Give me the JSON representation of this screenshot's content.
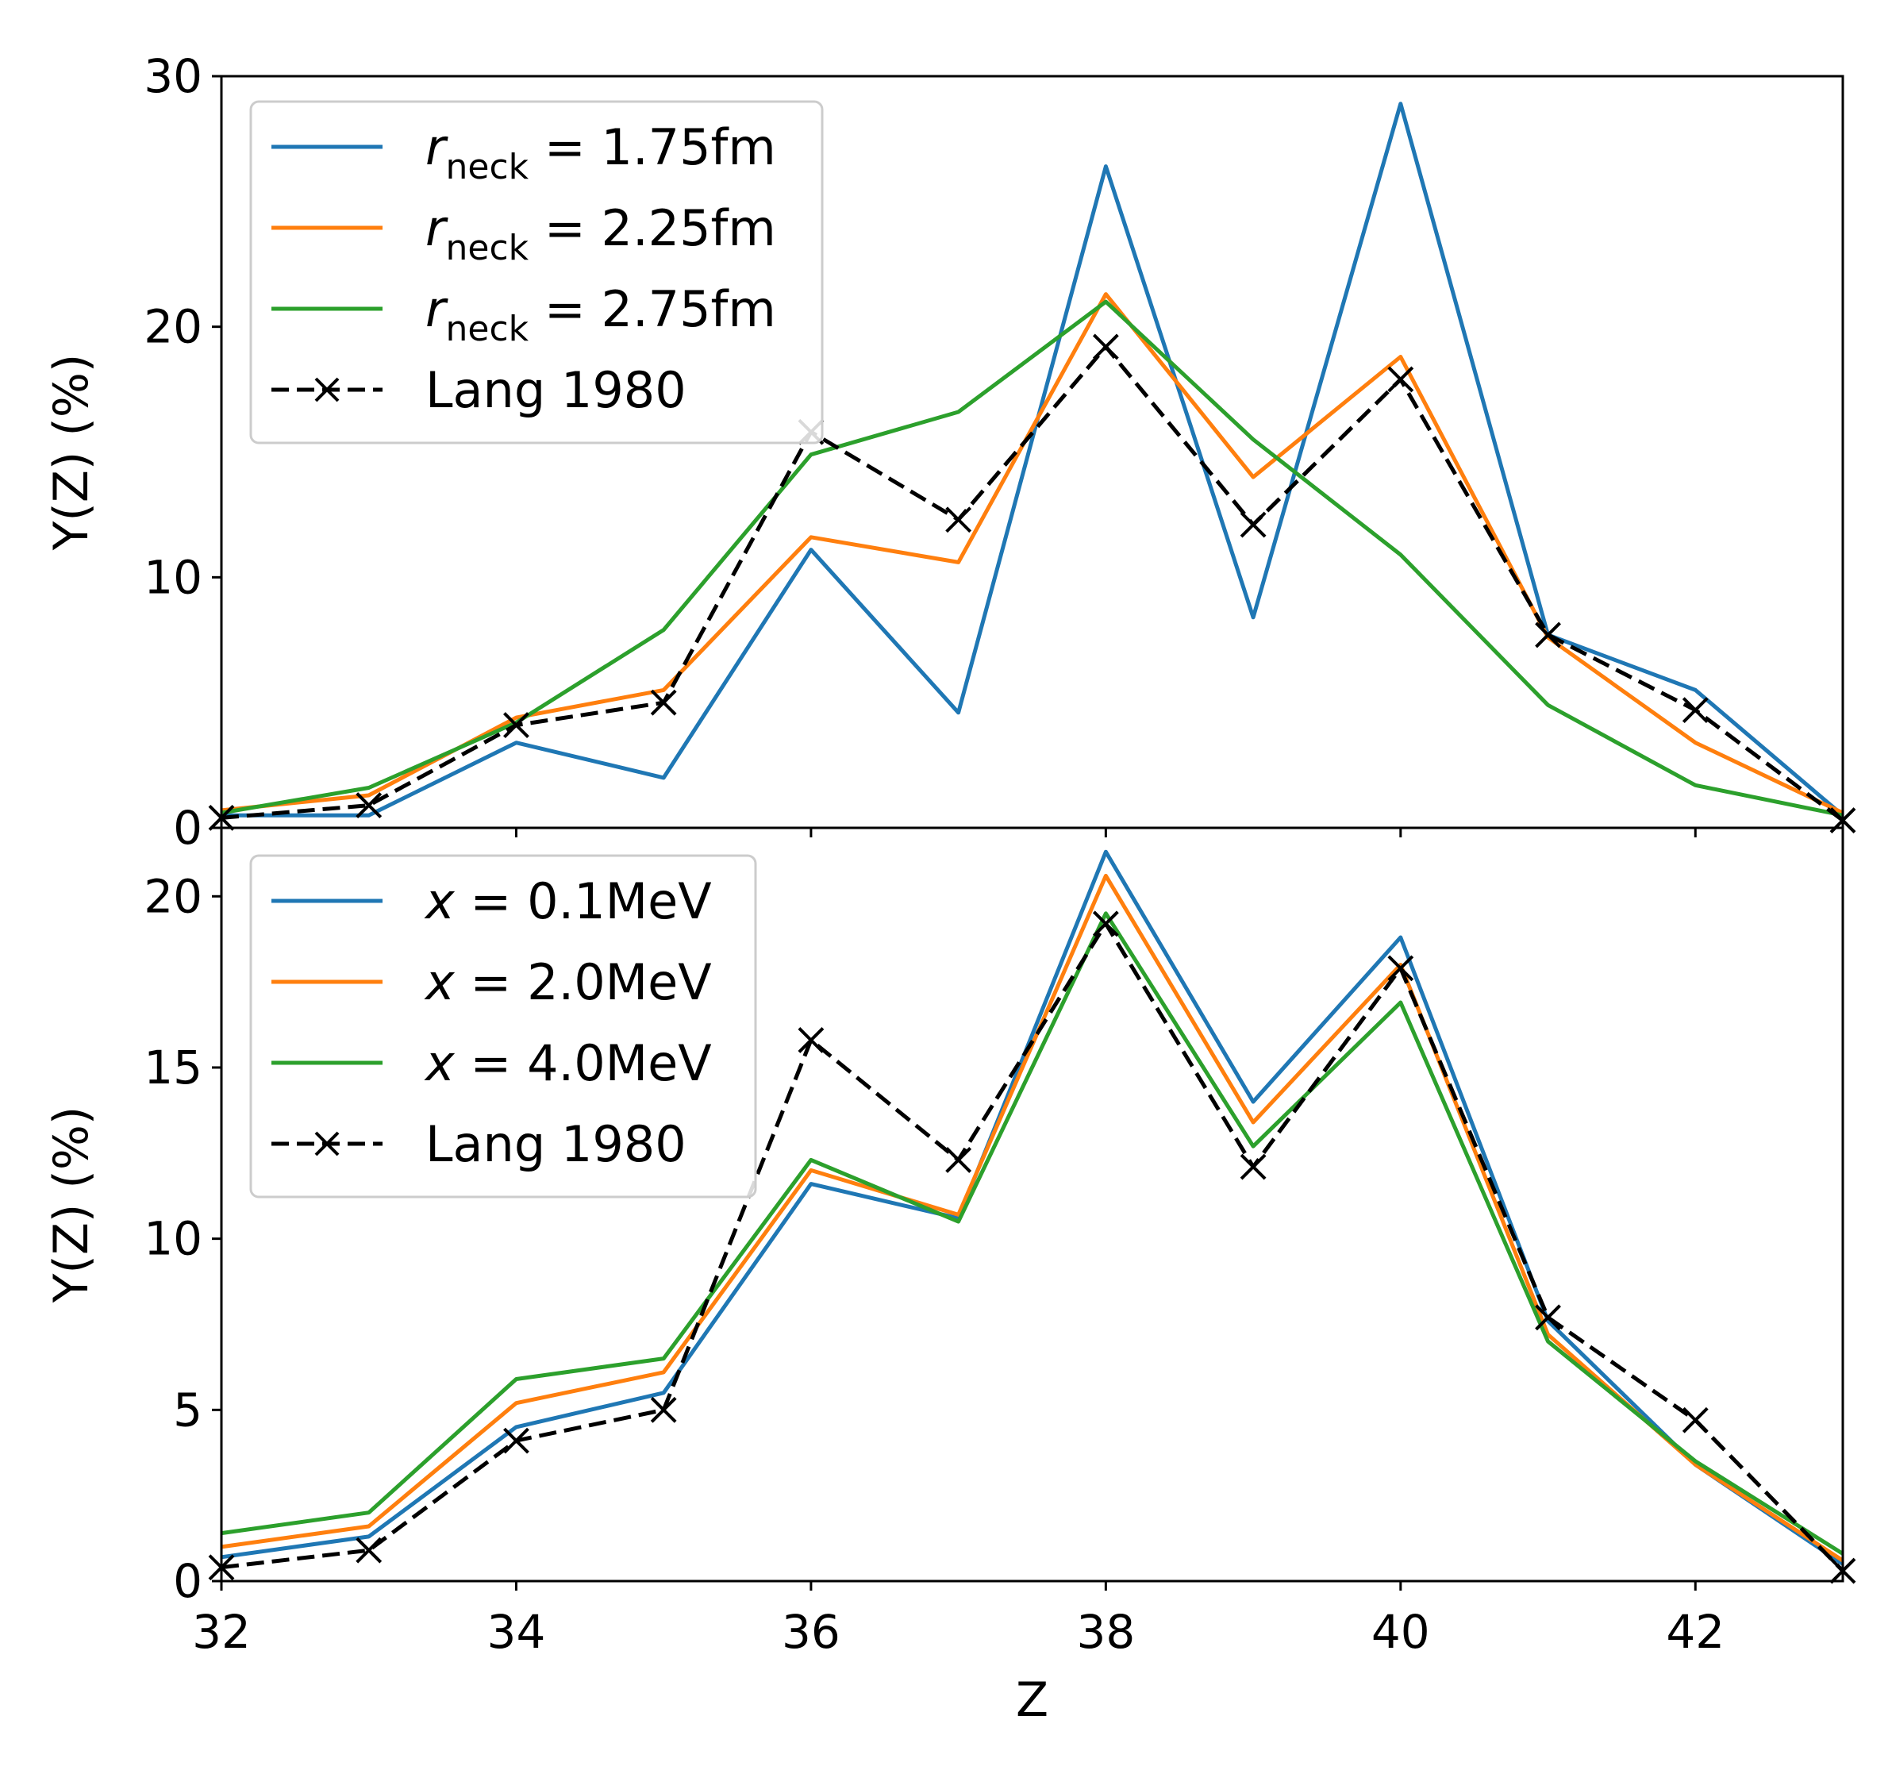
{
  "chart_data": [
    {
      "type": "line",
      "title": "",
      "xlabel": "",
      "ylabel": "Y(Z) (%)",
      "xlim": [
        32,
        43
      ],
      "ylim": [
        0,
        30
      ],
      "grid": false,
      "legend_position": "top-left",
      "x": [
        32,
        33,
        34,
        35,
        36,
        37,
        38,
        39,
        40,
        41,
        42,
        43
      ],
      "x_ticks": [],
      "y_ticks": [
        "0",
        "10",
        "20",
        "30"
      ],
      "series": [
        {
          "name": "r_neck = 1.75fm",
          "label_main": "r",
          "label_sub": "neck",
          "label_rest": " = 1.75fm",
          "color": "#1f77b4",
          "dashed": false,
          "marker": "none",
          "values": [
            0.5,
            0.5,
            3.4,
            2.0,
            11.1,
            4.6,
            26.4,
            8.4,
            28.9,
            7.7,
            5.5,
            0.5
          ]
        },
        {
          "name": "r_neck = 2.25fm",
          "label_main": "r",
          "label_sub": "neck",
          "label_rest": " = 2.25fm",
          "color": "#ff7f0e",
          "dashed": false,
          "marker": "none",
          "values": [
            0.7,
            1.3,
            4.4,
            5.5,
            11.6,
            10.6,
            21.3,
            14.0,
            18.8,
            7.6,
            3.4,
            0.6
          ]
        },
        {
          "name": "r_neck = 2.75fm",
          "label_main": "r",
          "label_sub": "neck",
          "label_rest": " = 2.75fm",
          "color": "#2ca02c",
          "dashed": false,
          "marker": "none",
          "values": [
            0.6,
            1.6,
            4.2,
            7.9,
            14.9,
            16.6,
            21.0,
            15.5,
            10.9,
            4.9,
            1.7,
            0.5
          ]
        },
        {
          "name": "Lang 1980",
          "label_main": "Lang 1980",
          "label_sub": "",
          "label_rest": "",
          "color": "#000000",
          "dashed": true,
          "marker": "x",
          "values": [
            0.4,
            0.9,
            4.1,
            5.0,
            15.8,
            12.3,
            19.2,
            12.1,
            17.9,
            7.7,
            4.7,
            0.3
          ]
        }
      ]
    },
    {
      "type": "line",
      "title": "",
      "xlabel": "Z",
      "ylabel": "Y(Z) (%)",
      "xlim": [
        32,
        43
      ],
      "ylim": [
        0,
        22
      ],
      "grid": false,
      "legend_position": "top-left",
      "x": [
        32,
        33,
        34,
        35,
        36,
        37,
        38,
        39,
        40,
        41,
        42,
        43
      ],
      "x_ticks": [
        "32",
        "34",
        "36",
        "38",
        "40",
        "42"
      ],
      "y_ticks": [
        "0",
        "5",
        "10",
        "15",
        "20"
      ],
      "series": [
        {
          "name": "x = 0.1MeV",
          "label_main": "x",
          "label_sub": "",
          "label_rest": " = 0.1MeV",
          "color": "#1f77b4",
          "dashed": false,
          "marker": "none",
          "values": [
            0.7,
            1.3,
            4.5,
            5.5,
            11.6,
            10.6,
            21.3,
            14.0,
            18.8,
            7.6,
            3.4,
            0.5
          ]
        },
        {
          "name": "x = 2.0MeV",
          "label_main": "x",
          "label_sub": "",
          "label_rest": " = 2.0MeV",
          "color": "#ff7f0e",
          "dashed": false,
          "marker": "none",
          "values": [
            1.0,
            1.6,
            5.2,
            6.1,
            12.0,
            10.7,
            20.6,
            13.4,
            18.0,
            7.2,
            3.4,
            0.6
          ]
        },
        {
          "name": "x = 4.0MeV",
          "label_main": "x",
          "label_sub": "",
          "label_rest": " = 4.0MeV",
          "color": "#2ca02c",
          "dashed": false,
          "marker": "none",
          "values": [
            1.4,
            2.0,
            5.9,
            6.5,
            12.3,
            10.5,
            19.5,
            12.7,
            16.9,
            7.0,
            3.5,
            0.8
          ]
        },
        {
          "name": "Lang 1980",
          "label_main": "Lang 1980",
          "label_sub": "",
          "label_rest": "",
          "color": "#000000",
          "dashed": true,
          "marker": "x",
          "values": [
            0.4,
            0.9,
            4.1,
            5.0,
            15.8,
            12.3,
            19.2,
            12.1,
            17.9,
            7.7,
            4.7,
            0.3
          ]
        }
      ]
    }
  ]
}
